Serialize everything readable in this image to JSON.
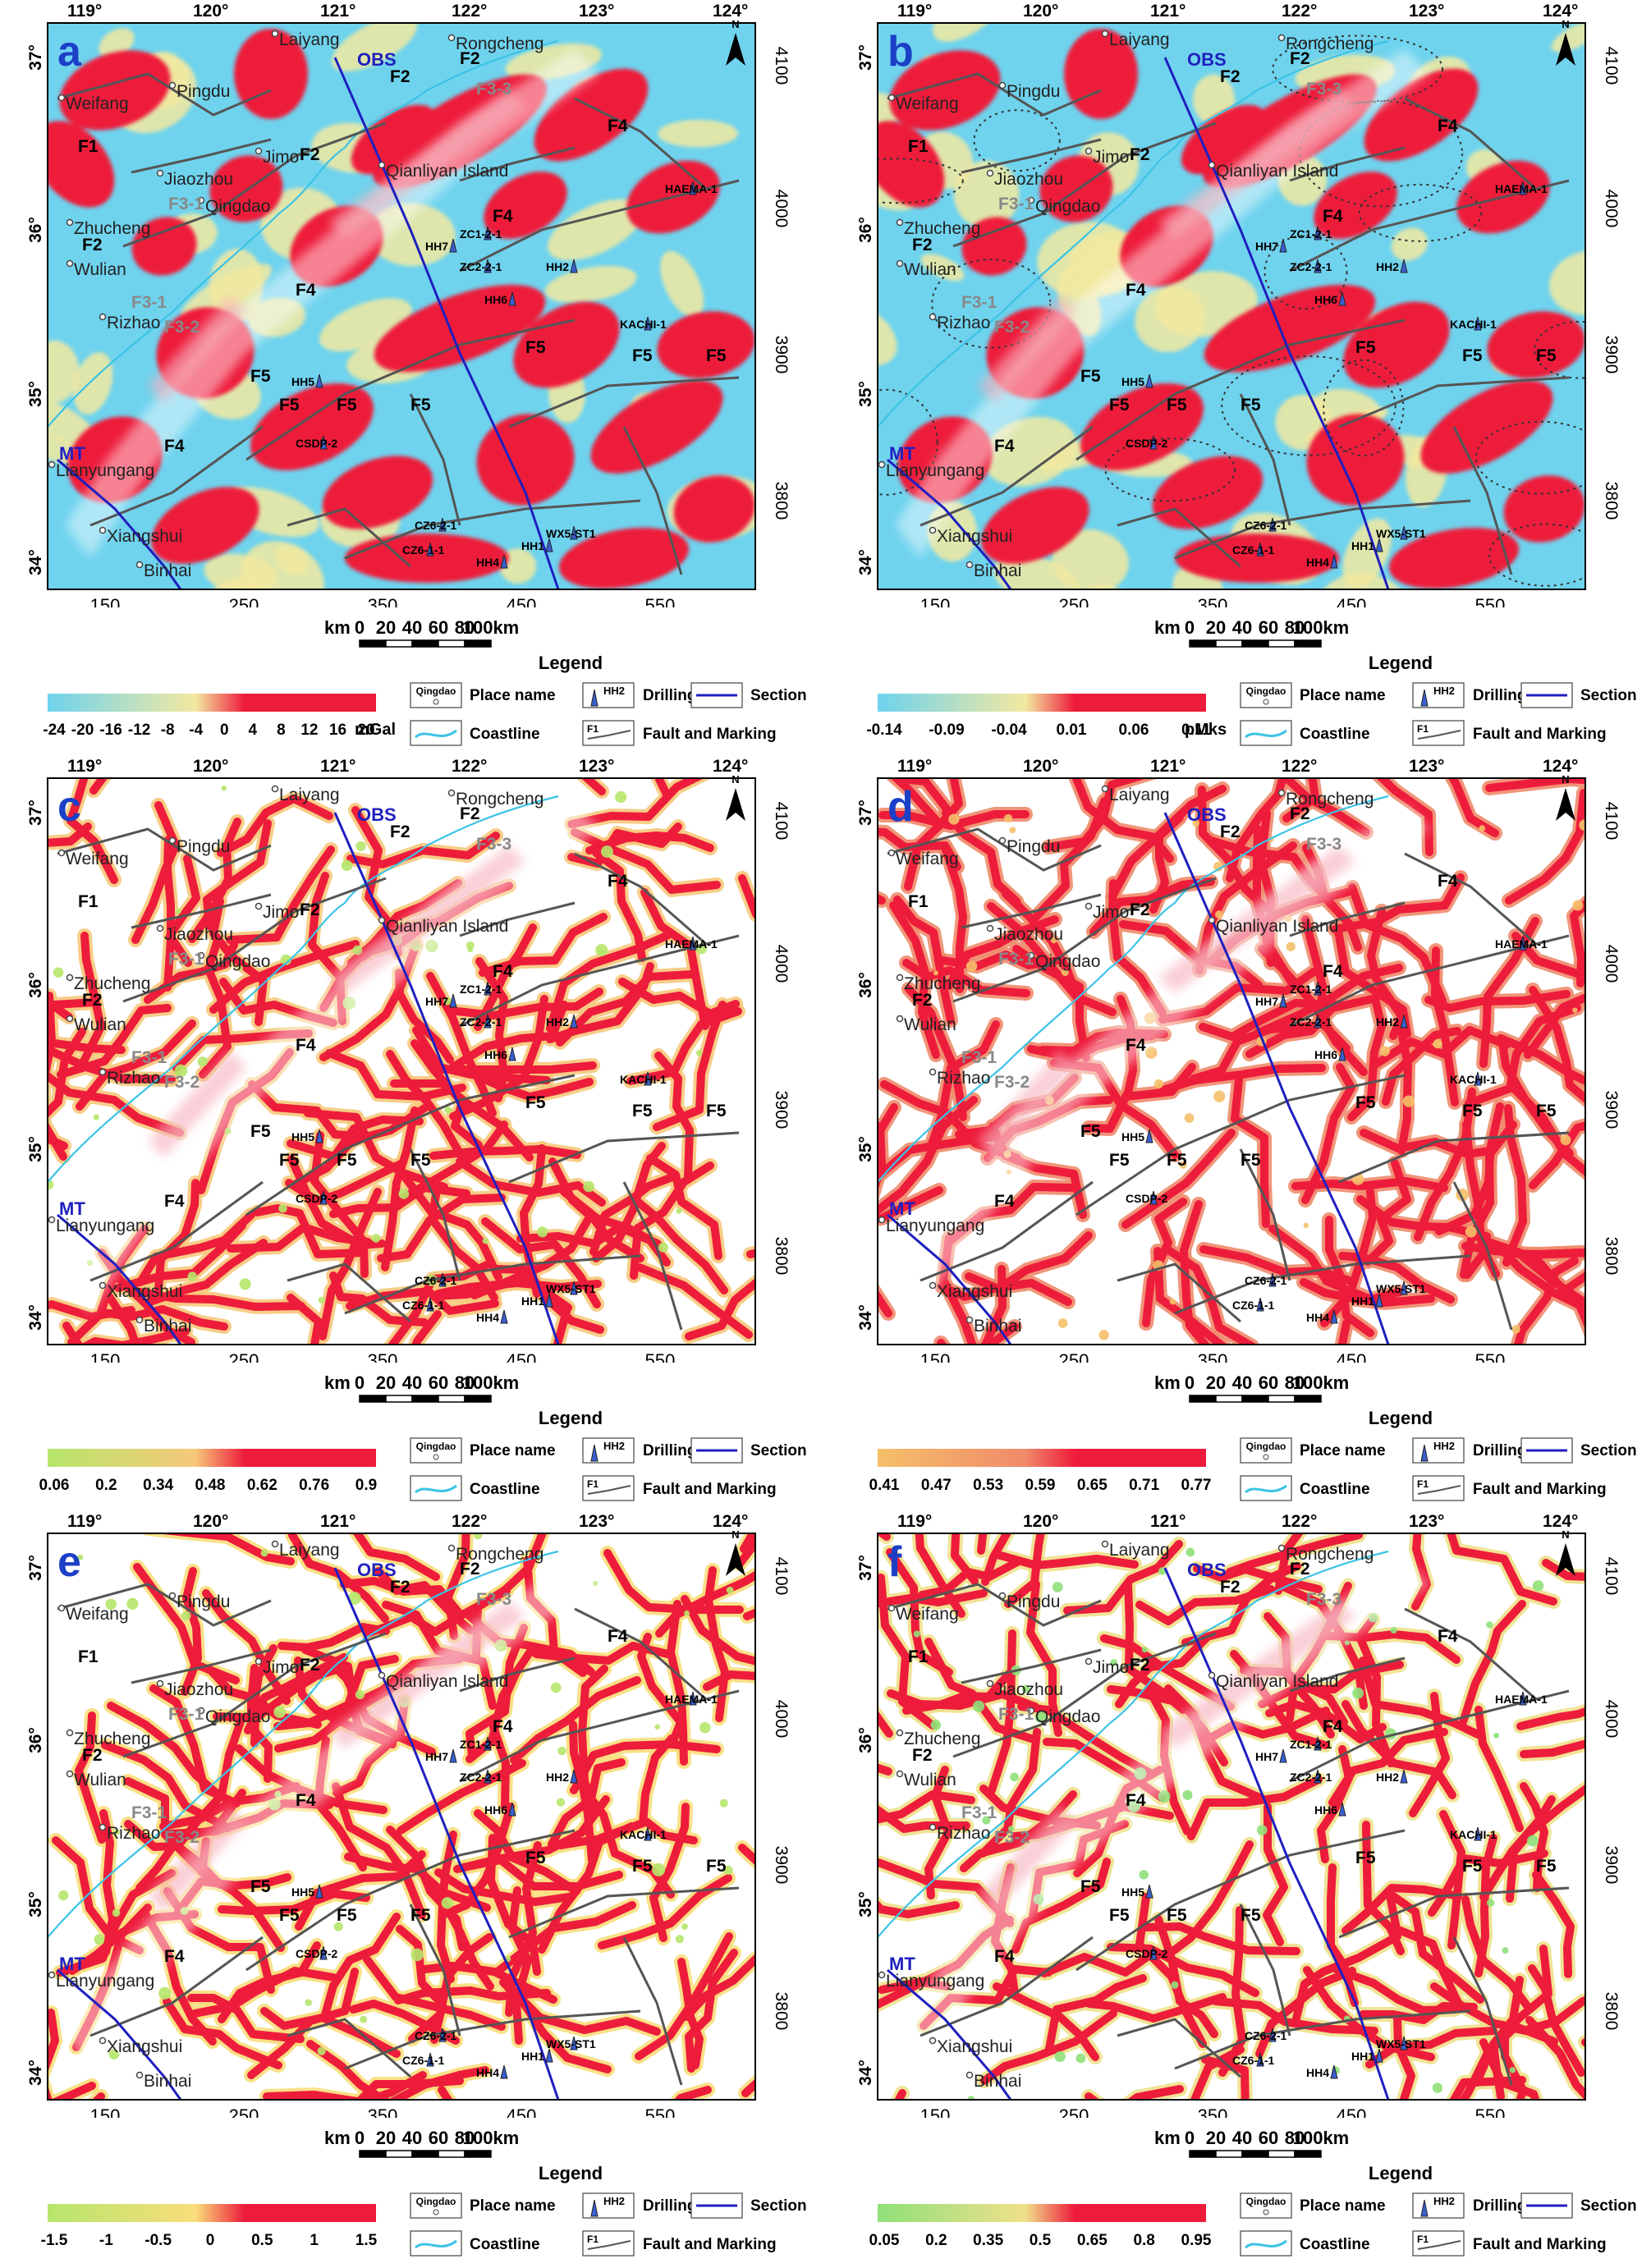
{
  "figure": {
    "lon_labels": [
      "119°",
      "120°",
      "121°",
      "122°",
      "123°",
      "124°"
    ],
    "lat_labels": [
      "37°",
      "36°",
      "35°",
      "34°"
    ],
    "km_x_labels": [
      "150",
      "250",
      "350",
      "450",
      "550"
    ],
    "km_y_labels": [
      "4100",
      "4000",
      "3900",
      "3800"
    ],
    "north_label": "N",
    "scale_bar": {
      "unit_left": "km",
      "ticks": [
        "0",
        "20",
        "40",
        "60",
        "80",
        "100km"
      ]
    },
    "places": {
      "laiyang": "Laiyang",
      "rongcheng": "Rongcheng",
      "pingdu": "Pingdu",
      "weifang": "Weifang",
      "jimo": "Jimo",
      "jiaozhou": "Jiaozhou",
      "qianliyan": "Qianliyan Island",
      "qingdao": "Qingdao",
      "zhucheng": "Zhucheng",
      "wulian": "Wulian",
      "rizhao": "Rizhao",
      "lianyungang": "Lianyungang",
      "xiangshui": "Xiangshui",
      "binhai": "Binhai"
    },
    "faults": {
      "f1": "F1",
      "f2": "F2",
      "f3_1": "F3-1",
      "f3_2": "F3-2",
      "f3_3": "F3-3",
      "f4": "F4",
      "f5": "F5"
    },
    "wells": {
      "hh7": "HH7",
      "zc1": "ZC1-2-1",
      "zc2": "ZC2-2-1",
      "hh2": "HH2",
      "hh6": "HH6",
      "haema": "HAEMA-1",
      "kachi": "KACHI-1",
      "hh5": "HH5",
      "csdp": "CSDP-2",
      "cz6_2": "CZ6-2-1",
      "cz6_1": "CZ6-1-1",
      "hh1": "HH1",
      "hh4": "HH4",
      "wx5": "WX5-ST1"
    },
    "section_labels": {
      "obs": "OBS",
      "mt": "MT"
    },
    "legend": {
      "title": "Legend",
      "place_symbol_text": "Qingdao",
      "place_name": "Place name",
      "drilling_symbol_text": "HH2",
      "drilling": "Drilling",
      "section": "Section",
      "coastline": "Coastline",
      "fault_symbol_text": "F1",
      "fault": "Fault and Marking"
    }
  },
  "panels": [
    {
      "letter": "a",
      "style": "anomaly",
      "unit": "mGal",
      "ticks": [
        "-24",
        "-20",
        "-16",
        "-12",
        "-8",
        "-4",
        "0",
        "4",
        "8",
        "12",
        "16",
        "20"
      ],
      "colors": {
        "low": "#6fd3ee",
        "mid": "#f2e9a0",
        "high": "#ee1c3b"
      }
    },
    {
      "letter": "b",
      "style": "anomaly",
      "unit": "pMks",
      "ticks": [
        "-0.14",
        "-0.09",
        "-0.04",
        "0.01",
        "0.06",
        "0.11"
      ],
      "colors": {
        "low": "#6fd3ee",
        "mid": "#f2e9a0",
        "high": "#ee1c3b"
      }
    },
    {
      "letter": "c",
      "style": "edge",
      "unit": "",
      "ticks": [
        "0.06",
        "0.2",
        "0.34",
        "0.48",
        "0.62",
        "0.76",
        "0.9"
      ],
      "colors": {
        "low": "#b6e66b",
        "mid": "#f7c87a",
        "high": "#ee1c3b"
      }
    },
    {
      "letter": "d",
      "style": "edge",
      "unit": "",
      "ticks": [
        "0.41",
        "0.47",
        "0.53",
        "0.59",
        "0.65",
        "0.71",
        "0.77"
      ],
      "colors": {
        "low": "#f5c06a",
        "mid": "#f08a6a",
        "high": "#ee1c3b"
      }
    },
    {
      "letter": "e",
      "style": "edge",
      "unit": "",
      "ticks": [
        "-1.5",
        "-1",
        "-0.5",
        "0",
        "0.5",
        "1",
        "1.5"
      ],
      "colors": {
        "low": "#b6e66b",
        "mid": "#f9dd7a",
        "high": "#ee1c3b"
      }
    },
    {
      "letter": "f",
      "style": "edge",
      "unit": "",
      "ticks": [
        "0.05",
        "0.2",
        "0.35",
        "0.5",
        "0.65",
        "0.8",
        "0.95"
      ],
      "colors": {
        "low": "#8fe07a",
        "mid": "#f0e08a",
        "high": "#ee1c3b"
      }
    }
  ]
}
